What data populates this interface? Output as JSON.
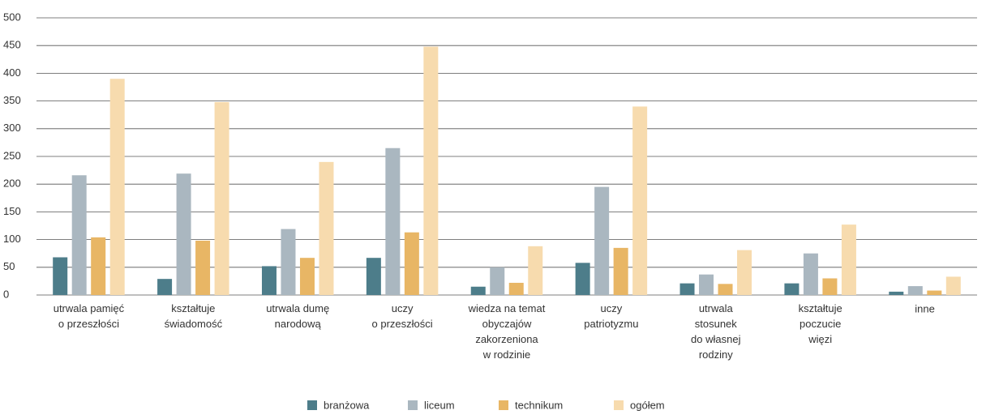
{
  "chart_data": {
    "type": "bar",
    "categories": [
      "utrwala pamięć\no przeszłości",
      "kształtuje\nświadomość",
      "utrwala dumę\nnarodową",
      "uczy\no przeszłości",
      "wiedza na temat\nobyczajów\nzakorzeniona\nw rodzinie",
      "uczy\npatriotyzmu",
      "utrwala\nstosunek\ndo własnej\nrodziny",
      "kształtuje\npoczucie\nwięzi",
      "inne"
    ],
    "series": [
      {
        "name": "branżowa",
        "color": "#4d7d8a",
        "values": [
          68,
          29,
          52,
          67,
          15,
          58,
          21,
          21,
          6
        ]
      },
      {
        "name": "liceum",
        "color": "#aab7c0",
        "values": [
          216,
          219,
          119,
          265,
          50,
          195,
          37,
          75,
          16
        ]
      },
      {
        "name": "technikum",
        "color": "#e8b665",
        "values": [
          104,
          98,
          67,
          113,
          22,
          85,
          20,
          30,
          8
        ]
      },
      {
        "name": "ogółem",
        "color": "#f7dbae",
        "values": [
          390,
          348,
          240,
          448,
          88,
          340,
          81,
          127,
          33
        ]
      }
    ],
    "ylim": [
      0,
      500
    ],
    "yticks": [
      0,
      50,
      100,
      150,
      200,
      250,
      300,
      350,
      400,
      450,
      500
    ],
    "grid": true,
    "legend": "bottom"
  }
}
